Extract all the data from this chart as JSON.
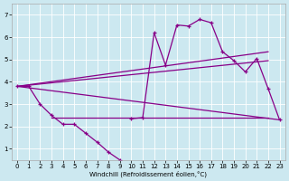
{
  "background_color": "#cce8f0",
  "line_color": "#880088",
  "xlabel": "Windchill (Refroidissement éolien,°C)",
  "ylim": [
    0.5,
    7.5
  ],
  "xlim": [
    -0.5,
    23.5
  ],
  "yticks": [
    1,
    2,
    3,
    4,
    5,
    6,
    7
  ],
  "xticks": [
    0,
    1,
    2,
    3,
    4,
    5,
    6,
    7,
    8,
    9,
    10,
    11,
    12,
    13,
    14,
    15,
    16,
    17,
    18,
    19,
    20,
    21,
    22,
    23
  ],
  "curve_left_x": [
    0,
    1,
    2,
    3,
    4,
    5,
    6,
    7,
    8,
    9
  ],
  "curve_left_y": [
    3.8,
    3.8,
    3.0,
    2.5,
    2.1,
    2.1,
    1.7,
    1.3,
    0.85,
    0.5
  ],
  "curve_right_x": [
    10,
    11,
    12,
    13,
    14,
    15,
    16,
    17,
    18,
    19,
    20,
    21,
    22,
    23
  ],
  "curve_right_y": [
    2.35,
    2.4,
    6.2,
    4.75,
    6.55,
    6.5,
    6.8,
    6.65,
    5.35,
    4.95,
    4.45,
    5.05,
    3.7,
    2.3
  ],
  "flat_line1_x": [
    3,
    10
  ],
  "flat_line1_y": [
    2.4,
    2.4
  ],
  "flat_line2_x": [
    10,
    22
  ],
  "flat_line2_y": [
    2.4,
    2.4
  ],
  "diag_line1_x": [
    0,
    23
  ],
  "diag_line1_y": [
    3.8,
    2.3
  ],
  "diag_line2_x": [
    0,
    22
  ],
  "diag_line2_y": [
    3.8,
    5.35
  ],
  "diag_line3_x": [
    0,
    22
  ],
  "diag_line3_y": [
    3.8,
    4.95
  ]
}
